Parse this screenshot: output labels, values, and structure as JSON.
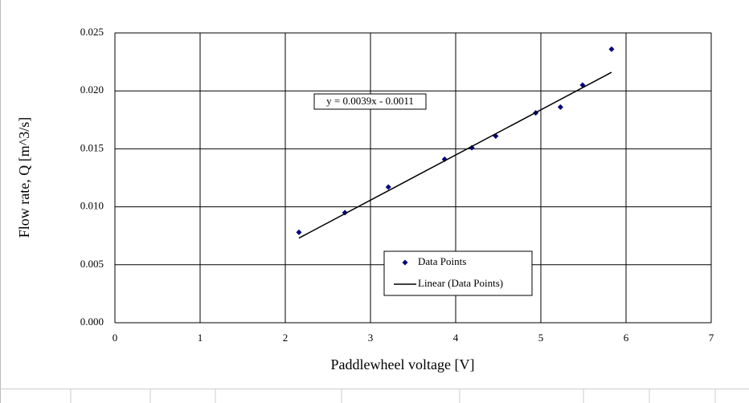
{
  "chart_data": {
    "type": "scatter",
    "xlabel": "Paddlewheel voltage [V]",
    "ylabel": "Flow rate, Q [m^3/s]",
    "annotation": "y = 0.0039x - 0.0011",
    "xlim": [
      0,
      7
    ],
    "xticks": [
      0,
      1,
      2,
      3,
      4,
      5,
      6,
      7
    ],
    "ylim": [
      0,
      0.025
    ],
    "yticks": [
      {
        "value": 0,
        "label": "0.000"
      },
      {
        "value": 0.005,
        "label": "0.005"
      },
      {
        "value": 0.01,
        "label": "0.010"
      },
      {
        "value": 0.015,
        "label": "0.015"
      },
      {
        "value": 0.02,
        "label": "0.020"
      },
      {
        "value": 0.025,
        "label": "0.025"
      }
    ],
    "grid": true,
    "legend": "bottom-center",
    "series": [
      {
        "name": "Data Points",
        "color": "#000080",
        "mode": "markers",
        "x": [
          2.16,
          2.7,
          3.21,
          3.87,
          4.19,
          4.47,
          4.94,
          5.23,
          5.49,
          5.83
        ],
        "values": [
          0.0078,
          0.0095,
          0.0117,
          0.0141,
          0.0151,
          0.0161,
          0.0181,
          0.0186,
          0.0205,
          0.0236
        ]
      },
      {
        "name": "Linear (Data Points)",
        "color": "#000000",
        "mode": "line",
        "x": [
          2.16,
          5.83
        ],
        "values": [
          0.0073,
          0.0216
        ]
      }
    ]
  }
}
